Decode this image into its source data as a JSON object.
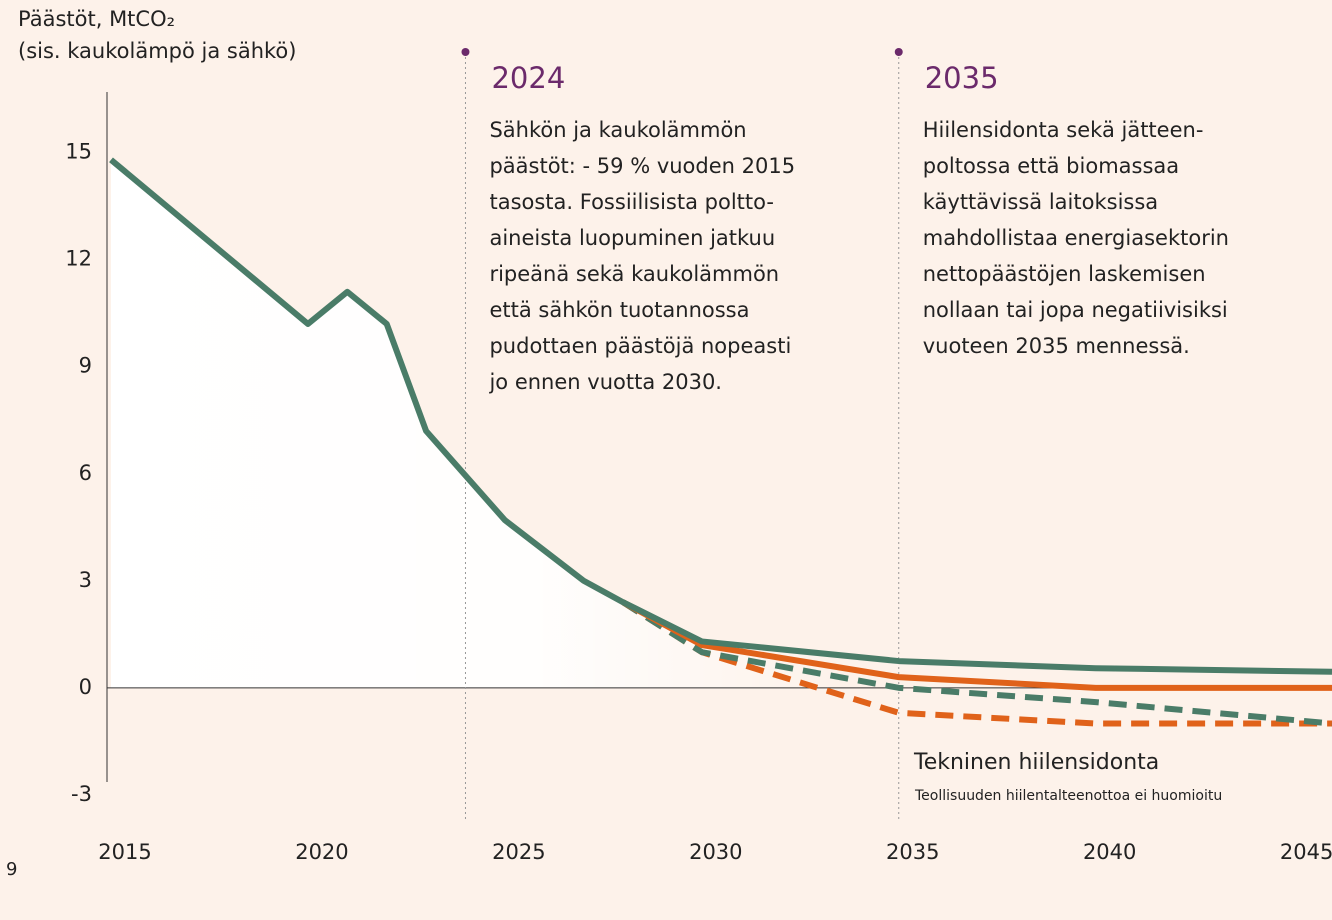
{
  "chart_data": {
    "type": "line",
    "y_axis_title": [
      "Päästöt, MtCO₂",
      "(sis. kaukolämpö ja sähkö)"
    ],
    "x": [
      2015,
      2020,
      2021,
      2022,
      2023,
      2025,
      2027,
      2028,
      2030,
      2035,
      2040,
      2046
    ],
    "series": [
      {
        "color": "#4a7c68",
        "dash": false,
        "values": [
          14.8,
          10.2,
          11.1,
          10.2,
          7.2,
          4.7,
          3.0,
          2.4,
          1.3,
          0.75,
          0.55,
          0.45
        ]
      },
      {
        "color": "#e0621a",
        "dash": false,
        "values": [
          null,
          null,
          null,
          null,
          null,
          null,
          null,
          2.4,
          1.2,
          0.3,
          0.0,
          0.0
        ]
      },
      {
        "color": "#4a7c68",
        "dash": true,
        "values": [
          null,
          null,
          null,
          null,
          null,
          null,
          null,
          2.4,
          1.0,
          0.0,
          -0.4,
          -1.0
        ]
      },
      {
        "color": "#e0621a",
        "dash": true,
        "values": [
          null,
          null,
          null,
          null,
          null,
          null,
          null,
          2.4,
          1.0,
          -0.7,
          -1.0,
          -1.0
        ]
      }
    ],
    "xlim": [
      2015,
      2046
    ],
    "xticks": [
      2015,
      2020,
      2025,
      2030,
      2035,
      2040,
      2045
    ],
    "ylim": [
      -3.2,
      16.7
    ],
    "yticks": [
      -3,
      0,
      3,
      6,
      9,
      12,
      15
    ],
    "annotations": [
      {
        "x": 2024,
        "title": "2024",
        "text": [
          "Sähkön ja kaukolämmön",
          "päästöt: - 59 % vuoden 2015",
          "tasosta. Fossiilisista poltto-",
          "aineista luopuminen jatkuu",
          "ripeänä sekä kaukolämmön",
          "että sähkön tuotannossa",
          "pudottaen päästöjä nopeasti",
          "jo ennen vuotta 2030."
        ]
      },
      {
        "x": 2035,
        "title": "2035",
        "text": [
          "Hiilensidonta sekä jätteen-",
          "poltossa että biomassaa",
          "käyttävissä laitoksissa",
          "mahdollistaa energiasektorin",
          "nettopäästöjen laskemisen",
          "nollaan tai jopa negatiivisiksi",
          "vuoteen 2035 mennessä."
        ]
      }
    ],
    "series_label": "Tekninen hiilensidonta",
    "series_note": "Teollisuuden hiilentalteenottoa ei huomioitu",
    "page_number": "9"
  }
}
